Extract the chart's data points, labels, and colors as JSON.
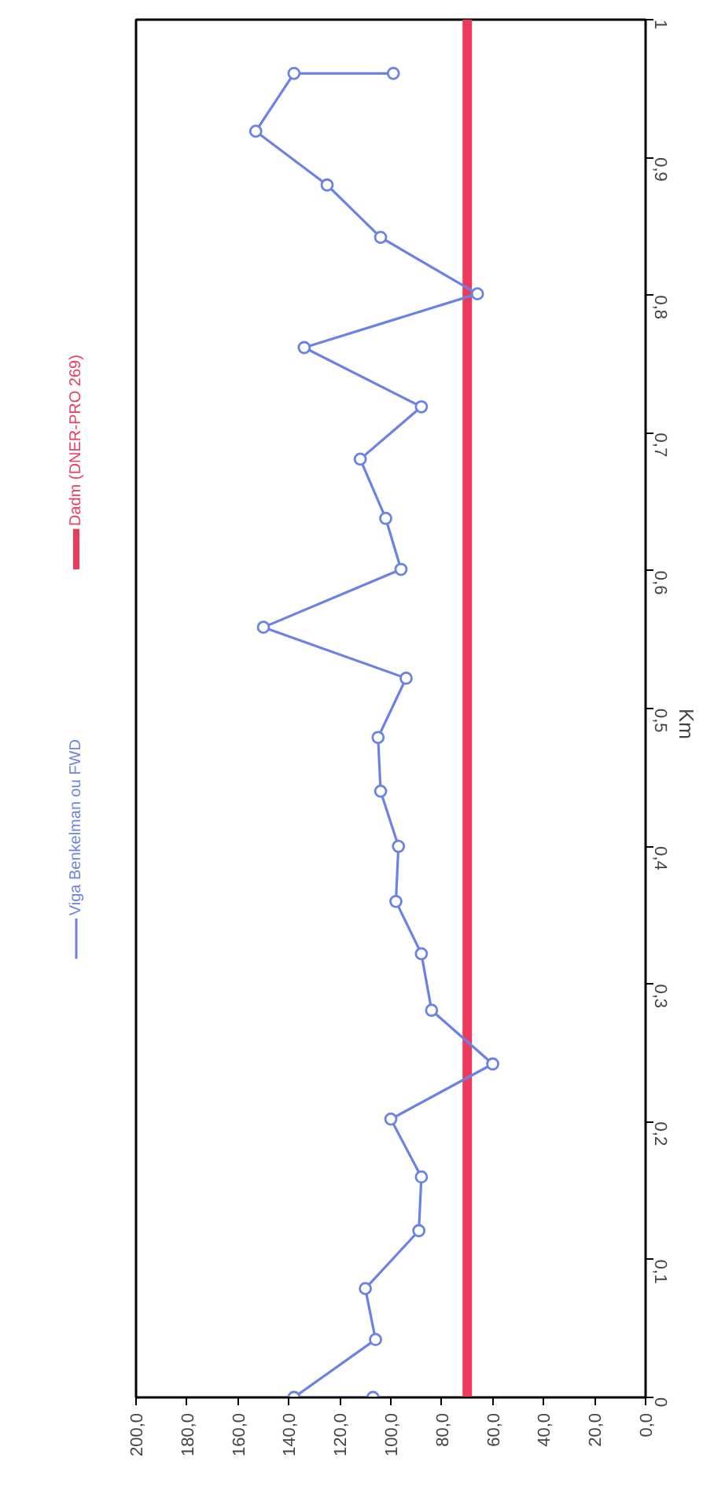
{
  "chart_data": {
    "type": "line",
    "ylabel": "Km",
    "ylim": [
      0,
      1
    ],
    "yticks": [
      0,
      {
        "value": 0.1,
        "label": "0,1"
      },
      {
        "value": 0.2,
        "label": "0,2"
      },
      {
        "value": 0.3,
        "label": "0,3"
      },
      {
        "value": 0.4,
        "label": "0,4"
      },
      {
        "value": 0.5,
        "label": "0,5"
      },
      {
        "value": 0.6,
        "label": "0,6"
      },
      {
        "value": 0.7,
        "label": "0,7"
      },
      {
        "value": 0.8,
        "label": "0,8"
      },
      {
        "value": 0.9,
        "label": "0,9"
      },
      1
    ],
    "xlim": [
      200,
      0
    ],
    "xticks": [
      {
        "value": 200,
        "label": "200,0"
      },
      {
        "value": 180,
        "label": "180,0"
      },
      {
        "value": 160,
        "label": "160,0"
      },
      {
        "value": 140,
        "label": "140,0"
      },
      {
        "value": 120,
        "label": "120,0"
      },
      {
        "value": 100,
        "label": "100,0"
      },
      {
        "value": 80,
        "label": "80,0"
      },
      {
        "value": 60,
        "label": "60,0"
      },
      {
        "value": 40,
        "label": "40,0"
      },
      {
        "value": 20,
        "label": "20,0"
      },
      {
        "value": 0,
        "label": "0,0"
      }
    ],
    "legend": "left",
    "series": [
      {
        "name": "Dadm (DNER-PRO 269)",
        "color": "#ee3a5a",
        "marker": "none",
        "x": [
          70,
          70
        ],
        "values": [
          0,
          1
        ]
      },
      {
        "name": "Viga Benkelman ou FWD",
        "color": "#6a82e6",
        "marker": "circle",
        "x": [
          107,
          138,
          106,
          110,
          89,
          88,
          100,
          60,
          84,
          88,
          98,
          97,
          104,
          105,
          94,
          150,
          96,
          102,
          112,
          88,
          134,
          66,
          104,
          125,
          153,
          138,
          99
        ],
        "values": [
          0,
          0,
          0.042,
          0.079,
          0.121,
          0.16,
          0.202,
          0.242,
          0.281,
          0.322,
          0.36,
          0.4,
          0.44,
          0.479,
          0.522,
          0.559,
          0.601,
          0.638,
          0.681,
          0.719,
          0.762,
          0.801,
          0.842,
          0.88,
          0.919,
          0.961,
          0.961
        ]
      }
    ]
  }
}
